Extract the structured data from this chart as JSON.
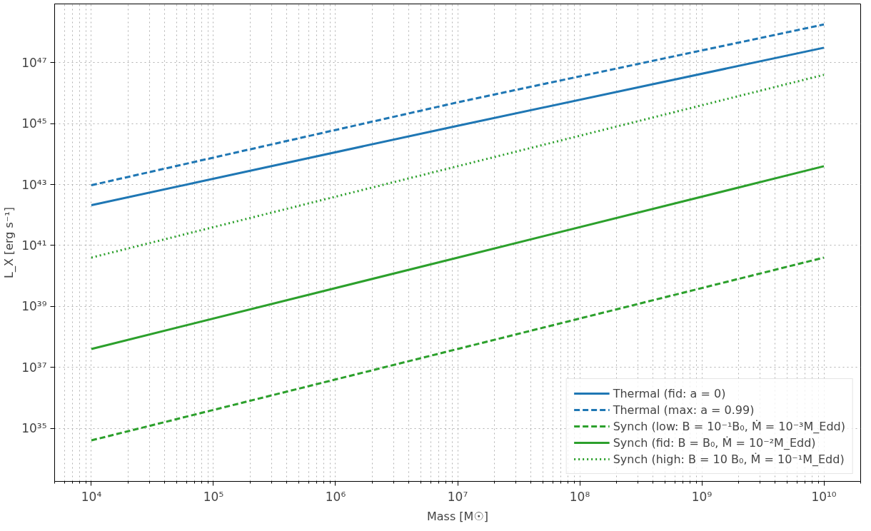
{
  "chart_data": {
    "type": "line",
    "xlabel": "Mass [M☉]",
    "ylabel": "L_X [erg s⁻¹]",
    "x": [
      10000.0,
      10000000.0,
      10000000000.0
    ],
    "series": [
      {
        "name": "Thermal (fid: a = 0)",
        "color": "#1f77b4",
        "line_style": "solid",
        "values": [
          2.1e+42,
          8.5e+44,
          3.1e+47
        ]
      },
      {
        "name": "Thermal (max: a = 0.99)",
        "color": "#1f77b4",
        "line_style": "dashed",
        "values": [
          9.5e+42,
          5e+45,
          1.8e+48
        ]
      },
      {
        "name": "Synch (low: B = 10⁻¹B₀, Ṁ = 10⁻³M_Edd)",
        "color": "#2ca02c",
        "line_style": "dashed",
        "values": [
          4e+34,
          4e+37,
          4e+40
        ]
      },
      {
        "name": "Synch (fid: B = B₀, Ṁ = 10⁻²M_Edd)",
        "color": "#2ca02c",
        "line_style": "solid",
        "values": [
          4e+37,
          4e+40,
          4e+43
        ]
      },
      {
        "name": "Synch (high: B = 10 B₀, Ṁ = 10⁻¹M_Edd)",
        "color": "#2ca02c",
        "line_style": "dotted",
        "values": [
          4e+40,
          4e+43,
          4e+46
        ]
      }
    ],
    "log": "xy",
    "xlim": [
      5000.0,
      20000000000.0
    ],
    "ylim": [
      1.8e+33,
      8.5e+48
    ],
    "xticks": [
      {
        "value": 10000.0,
        "label": "10⁴"
      },
      {
        "value": 100000.0,
        "label": "10⁵"
      },
      {
        "value": 1000000.0,
        "label": "10⁶"
      },
      {
        "value": 10000000.0,
        "label": "10⁷"
      },
      {
        "value": 100000000.0,
        "label": "10⁸"
      },
      {
        "value": 1000000000.0,
        "label": "10⁹"
      },
      {
        "value": 10000000000.0,
        "label": "10¹⁰"
      }
    ],
    "yticks": [
      {
        "value": 1e+35,
        "label": "10³⁵"
      },
      {
        "value": 1e+37,
        "label": "10³⁷"
      },
      {
        "value": 1e+39,
        "label": "10³⁹"
      },
      {
        "value": 1e+41,
        "label": "10⁴¹"
      },
      {
        "value": 1e+43,
        "label": "10⁴³"
      },
      {
        "value": 1e+45,
        "label": "10⁴⁵"
      },
      {
        "value": 1e+47,
        "label": "10⁴⁷"
      }
    ],
    "grid": true,
    "legend": "bottom right"
  }
}
